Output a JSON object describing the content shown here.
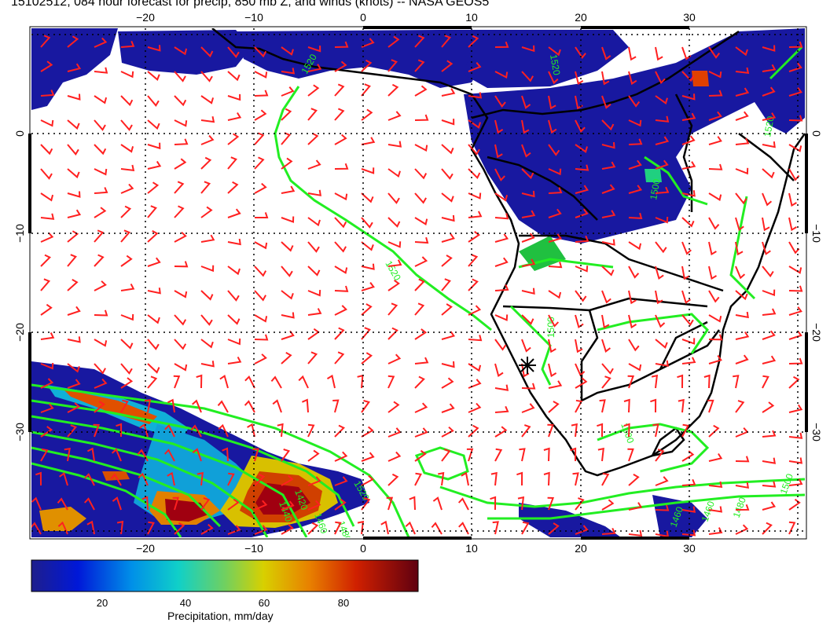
{
  "title": "15102512, 084 hour forecast for precip, 850 mb Z, and winds (knots) -- NASA GEOS5",
  "axes": {
    "lon_ticks": [
      "−20",
      "−10",
      "0",
      "10",
      "20",
      "30"
    ],
    "lat_ticks_left": [
      "0",
      "−10",
      "−20",
      "−30"
    ],
    "lat_ticks_right": [
      "0",
      "−10",
      "−20",
      "−30"
    ],
    "lon_range": [
      -30,
      41
    ],
    "lat_range": [
      10,
      -40
    ]
  },
  "contours": {
    "color": "#22ee22",
    "labels": [
      "1520",
      "1520",
      "1520",
      "1500",
      "1500",
      "1520",
      "1520",
      "1480",
      "1460",
      "1440",
      "1420",
      "1500",
      "1500",
      "1480",
      "1460",
      "1460"
    ]
  },
  "colorbar": {
    "label": "Precipitation, mm/day",
    "ticks": [
      "20",
      "40",
      "60",
      "80"
    ],
    "tick_values": [
      20,
      40,
      60,
      80
    ],
    "range": [
      0,
      98
    ],
    "colors": [
      "#1e1e8c",
      "#0050d8",
      "#00a0e0",
      "#20d0a0",
      "#80d040",
      "#d8d000",
      "#e08000",
      "#d02000",
      "#a00010",
      "#600010"
    ]
  },
  "colors": {
    "wind_barbs": "#ff2020",
    "coastlines": "#000000",
    "precip_light": "#1818a0"
  }
}
